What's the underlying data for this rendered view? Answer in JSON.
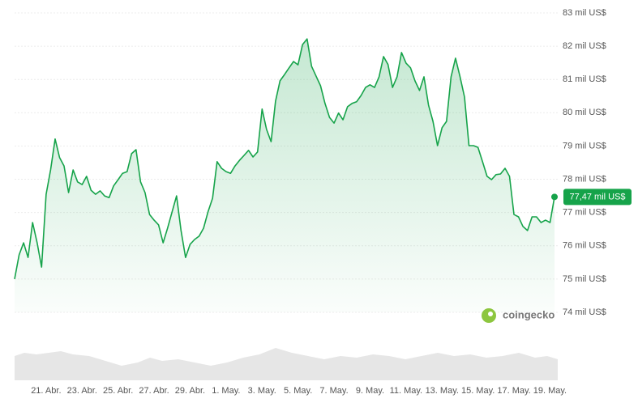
{
  "chart_data": {
    "type": "line",
    "brand": "coingecko",
    "categories": [
      null,
      null,
      null,
      null,
      null,
      null,
      null,
      "21. Abr.",
      null,
      null,
      null,
      null,
      null,
      null,
      null,
      "23. Abr.",
      null,
      null,
      null,
      null,
      null,
      null,
      null,
      "25. Abr.",
      null,
      null,
      null,
      null,
      null,
      null,
      null,
      "27. Abr.",
      null,
      null,
      null,
      null,
      null,
      null,
      null,
      "29. Abr.",
      null,
      null,
      null,
      null,
      null,
      null,
      null,
      "1. May.",
      null,
      null,
      null,
      null,
      null,
      null,
      null,
      "3. May.",
      null,
      null,
      null,
      null,
      null,
      null,
      null,
      "5. May.",
      null,
      null,
      null,
      null,
      null,
      null,
      null,
      "7. May.",
      null,
      null,
      null,
      null,
      null,
      null,
      null,
      "9. May.",
      null,
      null,
      null,
      null,
      null,
      null,
      null,
      "11. May.",
      null,
      null,
      null,
      null,
      null,
      null,
      null,
      "13. May.",
      null,
      null,
      null,
      null,
      null,
      null,
      null,
      "15. May.",
      null,
      null,
      null,
      null,
      null,
      null,
      null,
      "17. May.",
      null,
      null,
      null,
      null,
      null,
      null,
      null,
      "19. May.",
      null
    ],
    "series": [
      {
        "color": "#16a34a",
        "values": [
          75.0,
          75.73,
          76.09,
          75.65,
          76.7,
          76.09,
          75.36,
          77.55,
          78.28,
          79.21,
          78.65,
          78.4,
          77.6,
          78.28,
          77.92,
          77.84,
          78.09,
          77.67,
          77.55,
          77.65,
          77.5,
          77.45,
          77.8,
          77.99,
          78.18,
          78.23,
          78.77,
          78.89,
          77.92,
          77.6,
          76.94,
          76.77,
          76.63,
          76.09,
          76.53,
          77.02,
          77.5,
          76.46,
          75.65,
          76.04,
          76.19,
          76.29,
          76.53,
          77.02,
          77.43,
          78.53,
          78.33,
          78.23,
          78.18,
          78.4,
          78.57,
          78.72,
          78.87,
          78.67,
          78.82,
          80.11,
          79.5,
          79.13,
          80.35,
          80.96,
          81.15,
          81.35,
          81.54,
          81.44,
          82.05,
          82.22,
          81.4,
          81.1,
          80.81,
          80.28,
          79.86,
          79.69,
          79.99,
          79.79,
          80.18,
          80.28,
          80.33,
          80.52,
          80.76,
          80.84,
          80.76,
          81.08,
          81.69,
          81.45,
          80.76,
          81.08,
          81.81,
          81.49,
          81.35,
          80.96,
          80.67,
          81.08,
          80.23,
          79.74,
          79.01,
          79.55,
          79.74,
          81.08,
          81.64,
          81.08,
          80.47,
          79.01,
          79.01,
          78.96,
          78.53,
          78.09,
          77.99,
          78.14,
          78.16,
          78.33,
          78.09,
          76.94,
          76.87,
          76.58,
          76.46,
          76.87,
          76.87,
          76.7,
          76.77,
          76.7,
          77.47
        ],
        "value_labels": [
          null,
          null,
          null,
          null,
          null,
          null,
          null,
          null,
          null,
          null,
          null,
          null,
          null,
          null,
          null,
          null,
          null,
          null,
          null,
          null,
          null,
          null,
          null,
          null,
          null,
          null,
          null,
          null,
          null,
          null,
          null,
          null,
          null,
          null,
          null,
          null,
          null,
          null,
          null,
          null,
          null,
          null,
          null,
          null,
          null,
          null,
          null,
          null,
          null,
          null,
          null,
          null,
          null,
          null,
          null,
          null,
          null,
          null,
          null,
          null,
          null,
          null,
          null,
          null,
          null,
          null,
          null,
          null,
          null,
          null,
          null,
          null,
          null,
          null,
          null,
          null,
          null,
          null,
          null,
          null,
          null,
          null,
          null,
          null,
          null,
          null,
          null,
          null,
          null,
          null,
          null,
          null,
          null,
          null,
          null,
          null,
          null,
          null,
          null,
          null,
          null,
          null,
          null,
          null,
          null,
          null,
          null,
          null,
          null,
          null,
          null,
          null,
          null,
          null,
          null,
          null,
          null,
          null,
          null,
          null,
          "77,47 mil US$"
        ]
      }
    ],
    "ylim": [
      74,
      83
    ],
    "yticks": [
      {
        "value": 74,
        "label": "74 mil US$"
      },
      {
        "value": 75,
        "label": "75 mil US$"
      },
      {
        "value": 76,
        "label": "76 mil US$"
      },
      {
        "value": 77,
        "label": "77 mil US$"
      },
      {
        "value": 78,
        "label": "78 mil US$"
      },
      {
        "value": 79,
        "label": "79 mil US$"
      },
      {
        "value": 80,
        "label": "80 mil US$"
      },
      {
        "value": 81,
        "label": "81 mil US$"
      },
      {
        "value": 82,
        "label": "82 mil US$"
      },
      {
        "value": 83,
        "label": "83 mil US$"
      }
    ],
    "grid": true
  }
}
